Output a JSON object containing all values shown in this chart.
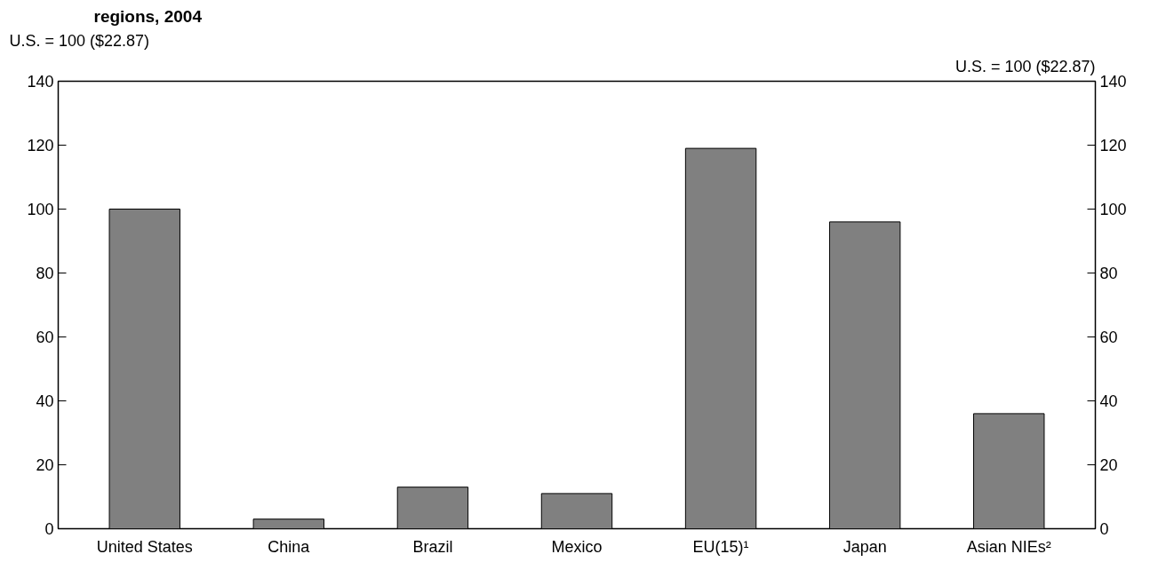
{
  "chart_data": {
    "type": "bar",
    "title": "regions, 2004",
    "ylabel": "U.S. = 100 ($22.87)",
    "y2label": "U.S. = 100 ($22.87)",
    "categories": [
      "United States",
      "China",
      "Brazil",
      "Mexico",
      "EU(15)¹",
      "Japan",
      "Asian NIEs²"
    ],
    "values": [
      100,
      3,
      13,
      11,
      119,
      96,
      36
    ],
    "color": "#808080",
    "ylim": [
      0,
      140
    ],
    "yticks": [
      0,
      20,
      40,
      60,
      80,
      100,
      120,
      140
    ],
    "y2lim": [
      0,
      140
    ],
    "y2ticks": [
      0,
      20,
      40,
      60,
      80,
      100,
      120,
      140
    ],
    "grid": false
  }
}
